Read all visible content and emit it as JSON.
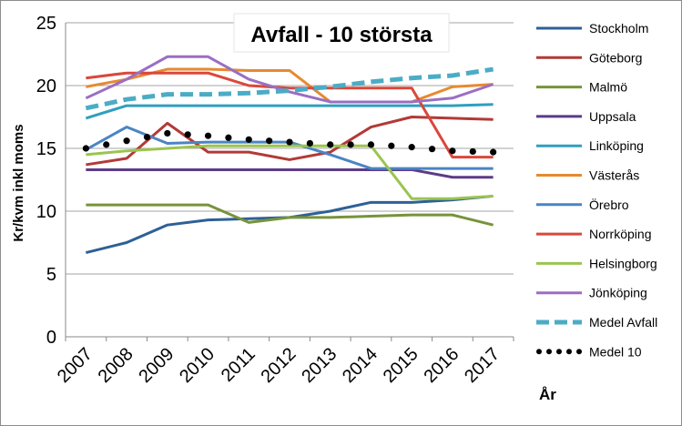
{
  "chart_data": {
    "type": "line",
    "title": "Avfall - 10 största",
    "ylabel": "Kr/kvm inkl moms",
    "xlabel": "År",
    "ylim": [
      0,
      25
    ],
    "yticks": [
      0,
      5,
      10,
      15,
      20,
      25
    ],
    "grid": true,
    "legend_position": "right",
    "categories": [
      "2007",
      "2008",
      "2009",
      "2010",
      "2011",
      "2012",
      "2013",
      "2014",
      "2015",
      "2016",
      "2017"
    ],
    "series": [
      {
        "name": "Stockholm",
        "color": "#2e6096",
        "style": "solid",
        "values": [
          6.7,
          7.5,
          8.9,
          9.3,
          9.4,
          9.5,
          10.0,
          10.7,
          10.7,
          10.9,
          11.2
        ]
      },
      {
        "name": "Göteborg",
        "color": "#b23a36",
        "style": "solid",
        "values": [
          13.7,
          14.2,
          17.0,
          14.7,
          14.7,
          14.1,
          14.7,
          16.7,
          17.5,
          17.4,
          17.3
        ]
      },
      {
        "name": "Malmö",
        "color": "#77933c",
        "style": "solid",
        "values": [
          10.5,
          10.5,
          10.5,
          10.5,
          9.1,
          9.5,
          9.5,
          9.6,
          9.7,
          9.7,
          8.9
        ]
      },
      {
        "name": "Uppsala",
        "color": "#5b3c88",
        "style": "solid",
        "values": [
          13.3,
          13.3,
          13.3,
          13.3,
          13.3,
          13.3,
          13.3,
          13.3,
          13.3,
          12.7,
          12.7
        ]
      },
      {
        "name": "Linköping",
        "color": "#2f9fbf",
        "style": "solid",
        "values": [
          17.4,
          18.4,
          18.4,
          18.4,
          18.4,
          18.4,
          18.4,
          18.4,
          18.4,
          18.4,
          18.5
        ]
      },
      {
        "name": "Västerås",
        "color": "#e68a30",
        "style": "solid",
        "values": [
          19.9,
          20.5,
          21.3,
          21.3,
          21.2,
          21.2,
          18.7,
          18.7,
          18.7,
          19.9,
          20.1
        ]
      },
      {
        "name": "Örebro",
        "color": "#4a84c4",
        "style": "solid",
        "values": [
          14.9,
          16.7,
          15.4,
          15.5,
          15.5,
          15.5,
          14.5,
          13.4,
          13.4,
          13.4,
          13.4
        ]
      },
      {
        "name": "Norrköping",
        "color": "#d9483b",
        "style": "solid",
        "values": [
          20.6,
          21.0,
          21.0,
          21.0,
          20.0,
          19.8,
          19.8,
          19.8,
          19.8,
          14.3,
          14.3
        ]
      },
      {
        "name": "Helsingborg",
        "color": "#9bc44f",
        "style": "solid",
        "values": [
          14.5,
          14.8,
          15.0,
          15.2,
          15.2,
          15.2,
          15.2,
          15.2,
          11.0,
          11.0,
          11.2
        ]
      },
      {
        "name": "Jönköping",
        "color": "#9b6ec3",
        "style": "solid",
        "values": [
          19.0,
          20.5,
          22.3,
          22.3,
          20.5,
          19.5,
          18.7,
          18.7,
          18.7,
          19.0,
          20.1
        ]
      },
      {
        "name": "Medel Avfall",
        "color": "#4bacc6",
        "style": "dashed",
        "values": [
          18.2,
          18.9,
          19.3,
          19.3,
          19.4,
          19.6,
          19.9,
          20.3,
          20.6,
          20.8,
          21.3
        ]
      },
      {
        "name": "Medel 10",
        "color": "#000000",
        "style": "dotted",
        "values": [
          15.0,
          15.6,
          16.2,
          16.0,
          15.7,
          15.5,
          15.3,
          15.3,
          15.1,
          14.8,
          14.7
        ]
      }
    ]
  }
}
